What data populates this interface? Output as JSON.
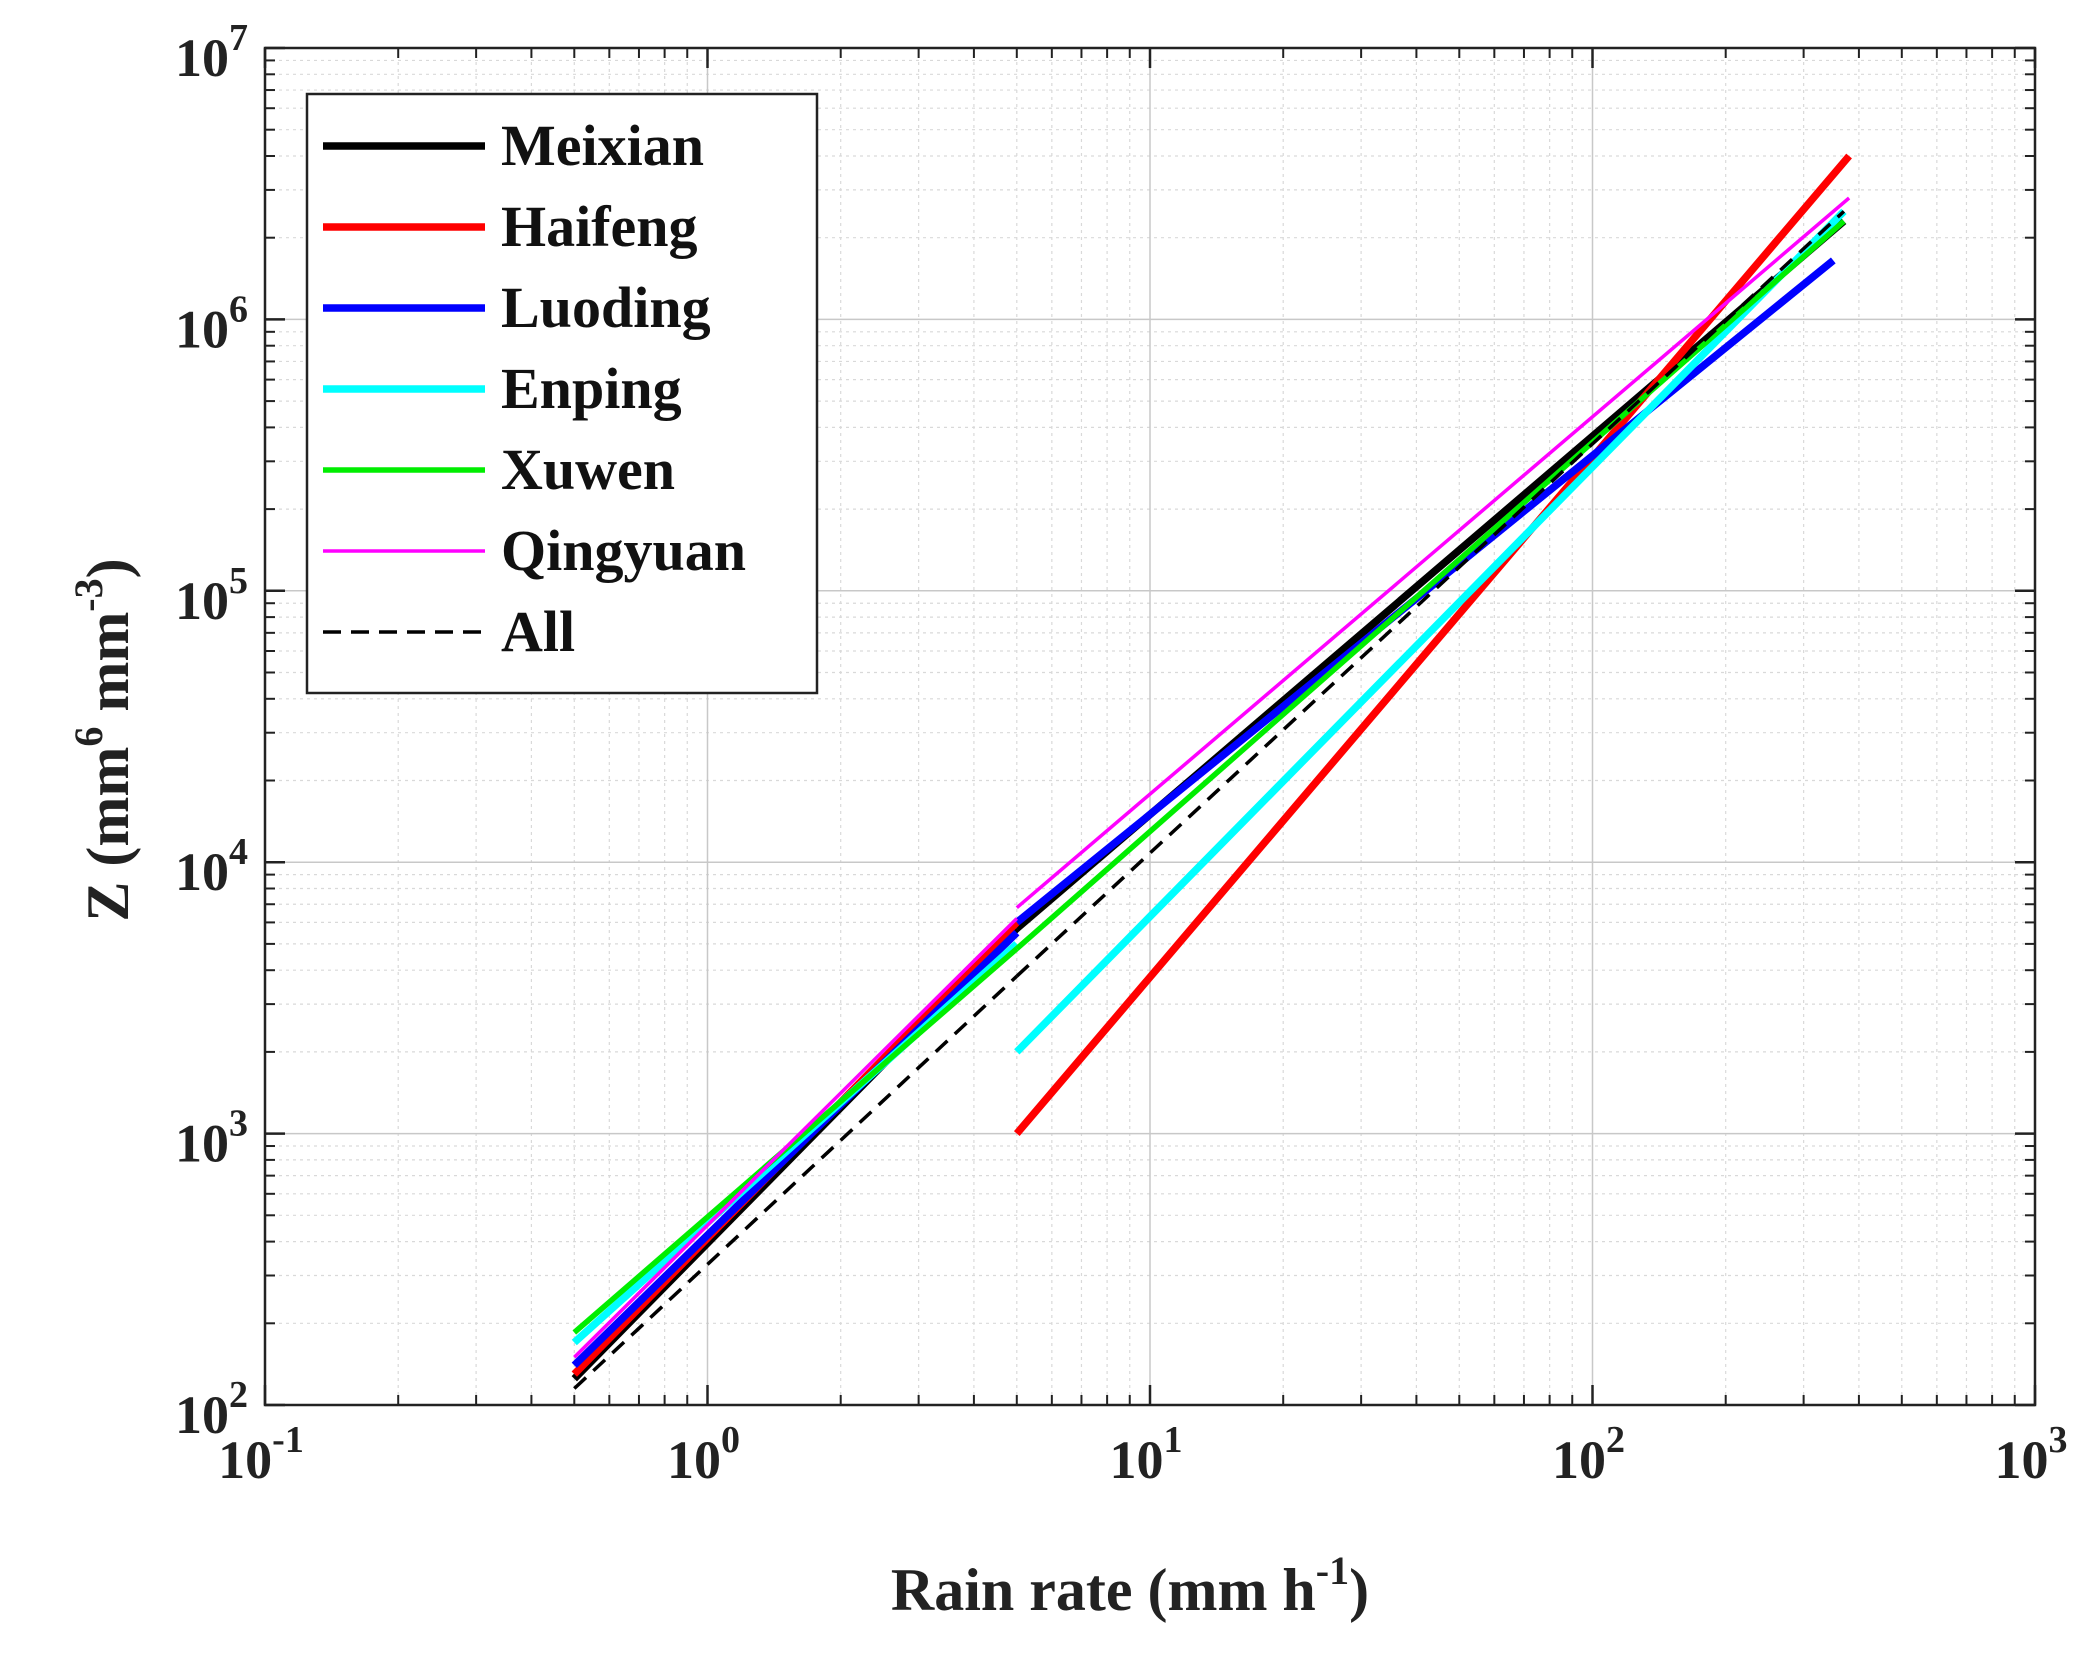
{
  "chart_data": {
    "type": "line",
    "xscale": "log",
    "yscale": "log",
    "xlim": [
      0.1,
      1000
    ],
    "ylim": [
      100,
      10000000
    ],
    "grid": true,
    "minor_grid": true,
    "legend_position": "top-left",
    "title": "",
    "xlabel": {
      "main": "Rain rate (mm h",
      "sup": "-1",
      "close": ")"
    },
    "ylabel": {
      "main": "Z (mm",
      "sup1": "6",
      "mid": " mm",
      "sup2": "-3",
      "close": ")"
    },
    "x_ticks": [
      {
        "base": "10",
        "exp": "-1",
        "value": 0.1
      },
      {
        "base": "10",
        "exp": "0",
        "value": 1
      },
      {
        "base": "10",
        "exp": "1",
        "value": 10
      },
      {
        "base": "10",
        "exp": "2",
        "value": 100
      },
      {
        "base": "10",
        "exp": "3",
        "value": 1000
      }
    ],
    "y_ticks": [
      {
        "base": "10",
        "exp": "2",
        "value": 100
      },
      {
        "base": "10",
        "exp": "3",
        "value": 1000
      },
      {
        "base": "10",
        "exp": "4",
        "value": 10000
      },
      {
        "base": "10",
        "exp": "5",
        "value": 100000
      },
      {
        "base": "10",
        "exp": "6",
        "value": 1000000
      },
      {
        "base": "10",
        "exp": "7",
        "value": 10000000
      }
    ],
    "series": [
      {
        "name": "Meixian",
        "color": "#000000",
        "dash": "solid",
        "weight": "heavy",
        "segments": [
          {
            "x": [
              0.5,
              5
            ],
            "y": [
              125,
              5700
            ]
          },
          {
            "x": [
              5,
              370
            ],
            "y": [
              5700,
              2300000
            ]
          }
        ]
      },
      {
        "name": "Haifeng",
        "color": "#ff0000",
        "dash": "solid",
        "weight": "heavy",
        "segments": [
          {
            "x": [
              0.5,
              5
            ],
            "y": [
              130,
              6000
            ]
          },
          {
            "x": [
              5,
              380
            ],
            "y": [
              1000,
              4000000
            ]
          }
        ]
      },
      {
        "name": "Luoding",
        "color": "#0000ff",
        "dash": "solid",
        "weight": "heavy",
        "segments": [
          {
            "x": [
              0.5,
              5
            ],
            "y": [
              140,
              5500
            ]
          },
          {
            "x": [
              5,
              350
            ],
            "y": [
              6000,
              1650000
            ]
          }
        ]
      },
      {
        "name": "Enping",
        "color": "#00ffff",
        "dash": "solid",
        "weight": "heavy",
        "segments": [
          {
            "x": [
              0.5,
              5
            ],
            "y": [
              170,
              5000
            ]
          },
          {
            "x": [
              5,
              370
            ],
            "y": [
              2000,
              2500000
            ]
          }
        ]
      },
      {
        "name": "Xuwen",
        "color": "#00ee00",
        "dash": "solid",
        "weight": "medium",
        "segments": [
          {
            "x": [
              0.5,
              5
            ],
            "y": [
              185,
              4800
            ]
          },
          {
            "x": [
              5,
              370
            ],
            "y": [
              4800,
              2300000
            ]
          }
        ]
      },
      {
        "name": "Qingyuan",
        "color": "#ff00ff",
        "dash": "solid",
        "weight": "light",
        "segments": [
          {
            "x": [
              0.5,
              5
            ],
            "y": [
              150,
              6200
            ]
          },
          {
            "x": [
              5,
              380
            ],
            "y": [
              6800,
              2800000
            ]
          }
        ]
      },
      {
        "name": "All",
        "color": "#000000",
        "dash": "dashed",
        "weight": "light",
        "segments": [
          {
            "x": [
              0.5,
              5
            ],
            "y": [
              115,
              3800
            ]
          },
          {
            "x": [
              5,
              370
            ],
            "y": [
              3800,
              2500000
            ]
          }
        ]
      }
    ]
  }
}
